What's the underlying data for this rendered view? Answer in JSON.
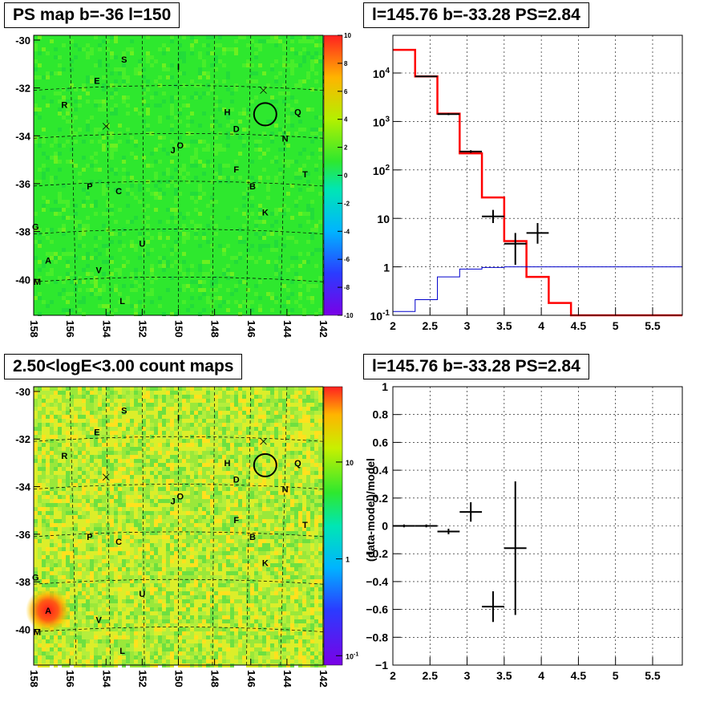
{
  "panels": {
    "tl": {
      "title": "PS map b=-36 l=150"
    },
    "tr": {
      "title": "l=145.76 b=-33.28 PS=2.84"
    },
    "bl": {
      "title": "2.50<logE<3.00 count maps"
    },
    "br": {
      "title": "l=145.76 b=-33.28 PS=2.84",
      "ylabel": "(data-model)/model"
    }
  },
  "colors": {
    "map_green": "#2ee82e",
    "model_red": "#ff0000",
    "blue_line": "#0000cc",
    "frame": "#000000"
  },
  "chart_data": [
    {
      "type": "heatmap",
      "name": "ps_map",
      "x_ticks": [
        "158",
        "156",
        "154",
        "152",
        "150",
        "148",
        "146",
        "144",
        "142"
      ],
      "y_ticks": [
        "-30",
        "-32",
        "-34",
        "-36",
        "-38",
        "-40"
      ],
      "xlim": [
        158,
        142
      ],
      "ylim": [
        -41.5,
        -29.8
      ],
      "colorbar_ticks": [
        "10",
        "8",
        "6",
        "4",
        "2",
        "0",
        "-2",
        "-4",
        "-6",
        "-8",
        "-10"
      ],
      "colorbar_range": [
        -10,
        10
      ],
      "dominant_value": 0.3,
      "marker_circle": {
        "l": 145.2,
        "b": -33.1
      },
      "crosses": [
        {
          "l": 154.0,
          "b": -33.6
        },
        {
          "l": 145.3,
          "b": -32.1
        }
      ],
      "source_labels": [
        {
          "t": "S",
          "l": 153.0,
          "b": -30.8
        },
        {
          "t": "I",
          "l": 150.0,
          "b": -31.1
        },
        {
          "t": "E",
          "l": 154.5,
          "b": -31.7
        },
        {
          "t": "R",
          "l": 156.3,
          "b": -32.7
        },
        {
          "t": "H",
          "l": 147.3,
          "b": -33.0
        },
        {
          "t": "Q",
          "l": 143.4,
          "b": -33.0
        },
        {
          "t": "D",
          "l": 146.8,
          "b": -33.7
        },
        {
          "t": "N",
          "l": 144.1,
          "b": -34.1
        },
        {
          "t": "O",
          "l": 149.9,
          "b": -34.4
        },
        {
          "t": "J",
          "l": 150.3,
          "b": -34.6
        },
        {
          "t": "F",
          "l": 146.8,
          "b": -35.4
        },
        {
          "t": "T",
          "l": 143.0,
          "b": -35.6
        },
        {
          "t": "P",
          "l": 154.9,
          "b": -36.1
        },
        {
          "t": "C",
          "l": 153.3,
          "b": -36.3
        },
        {
          "t": "B",
          "l": 145.9,
          "b": -36.1
        },
        {
          "t": "K",
          "l": 145.2,
          "b": -37.2
        },
        {
          "t": "G",
          "l": 157.9,
          "b": -37.8
        },
        {
          "t": "U",
          "l": 152.0,
          "b": -38.5
        },
        {
          "t": "A",
          "l": 157.2,
          "b": -39.2
        },
        {
          "t": "V",
          "l": 154.4,
          "b": -39.6
        },
        {
          "t": "M",
          "l": 157.8,
          "b": -40.1
        },
        {
          "t": "L",
          "l": 153.1,
          "b": -40.9
        }
      ]
    },
    {
      "type": "line",
      "name": "spectrum",
      "title": "l=145.76 b=-33.28 PS=2.84",
      "xlim": [
        2.0,
        5.9
      ],
      "y_log": true,
      "ylim": [
        0.1,
        60000
      ],
      "x_ticks": [
        "2",
        "2.5",
        "3",
        "3.5",
        "4",
        "4.5",
        "5",
        "5.5"
      ],
      "y_ticks": [
        "10^-1",
        "1",
        "10",
        "10^2",
        "10^3",
        "10^4"
      ],
      "grid": true,
      "series": [
        {
          "style": "step-red",
          "edges": [
            2.0,
            2.3,
            2.6,
            2.9,
            3.2,
            3.5,
            3.8,
            4.1,
            4.4,
            4.7,
            5.0,
            5.3,
            5.6,
            5.9
          ],
          "values": [
            30000,
            8500,
            1450,
            220,
            27,
            3.4,
            0.62,
            0.18,
            0.1,
            0.1,
            0.1,
            0.1,
            0.1
          ]
        },
        {
          "style": "step-blue",
          "edges": [
            2.0,
            2.3,
            2.6,
            2.9,
            3.2,
            3.5,
            3.8,
            4.1,
            4.4,
            4.7,
            5.0,
            5.3,
            5.6,
            5.9
          ],
          "values": [
            0.12,
            0.21,
            0.62,
            0.9,
            0.97,
            1.0,
            1.0,
            1.0,
            1.0,
            1.0,
            1.0,
            1.0,
            1.0
          ]
        },
        {
          "style": "points",
          "points": [
            {
              "x": 2.45,
              "y": 8500,
              "xerr": 0.15,
              "ylo": 8300,
              "yhi": 8700
            },
            {
              "x": 2.75,
              "y": 1420,
              "xerr": 0.15,
              "ylo": 1350,
              "yhi": 1490
            },
            {
              "x": 3.05,
              "y": 240,
              "xerr": 0.15,
              "ylo": 225,
              "yhi": 255
            },
            {
              "x": 3.35,
              "y": 11,
              "xerr": 0.15,
              "ylo": 8,
              "yhi": 15
            },
            {
              "x": 3.65,
              "y": 3.0,
              "xerr": 0.15,
              "ylo": 1.1,
              "yhi": 5
            },
            {
              "x": 3.95,
              "y": 5.0,
              "xerr": 0.15,
              "ylo": 3,
              "yhi": 8
            }
          ]
        }
      ]
    },
    {
      "type": "heatmap",
      "name": "count_map",
      "title": "2.50<logE<3.00 count maps",
      "x_ticks": [
        "158",
        "156",
        "154",
        "152",
        "150",
        "148",
        "146",
        "144",
        "142"
      ],
      "y_ticks": [
        "-30",
        "-32",
        "-34",
        "-36",
        "-38",
        "-40"
      ],
      "xlim": [
        158,
        142
      ],
      "ylim": [
        -41.5,
        -29.8
      ],
      "colorbar_ticks": [
        "10",
        "1",
        "10^-1"
      ],
      "colorbar_log": true,
      "colorbar_range": [
        0.08,
        60
      ],
      "hotspot": {
        "l": 157.2,
        "b": -39.2,
        "label": "A"
      },
      "marker_circle": {
        "l": 145.2,
        "b": -33.1
      },
      "crosses": [
        {
          "l": 154.0,
          "b": -33.6
        },
        {
          "l": 145.3,
          "b": -32.1
        }
      ]
    },
    {
      "type": "scatter",
      "name": "residuals",
      "title": "l=145.76 b=-33.28 PS=2.84",
      "ylabel": "(data-model)/model",
      "xlim": [
        2.0,
        5.9
      ],
      "ylim": [
        -1.0,
        1.0
      ],
      "x_ticks": [
        "2",
        "2.5",
        "3",
        "3.5",
        "4",
        "4.5",
        "5",
        "5.5"
      ],
      "y_ticks": [
        "1",
        "0.8",
        "0.6",
        "0.4",
        "0.2",
        "0",
        "-0.2",
        "-0.4",
        "-0.6",
        "-0.8",
        "-1"
      ],
      "grid": true,
      "points": [
        {
          "x": 2.15,
          "y": 0.0,
          "xerr": 0.15,
          "yerr": 0.01
        },
        {
          "x": 2.45,
          "y": 0.0,
          "xerr": 0.15,
          "yerr": 0.01
        },
        {
          "x": 2.75,
          "y": -0.04,
          "xerr": 0.15,
          "yerr": 0.02
        },
        {
          "x": 3.05,
          "y": 0.1,
          "xerr": 0.15,
          "yerr": 0.07
        },
        {
          "x": 3.35,
          "y": -0.58,
          "xerr": 0.15,
          "yerr": 0.11
        },
        {
          "x": 3.65,
          "y": -0.16,
          "xerr": 0.15,
          "yerr": 0.48
        }
      ]
    }
  ]
}
